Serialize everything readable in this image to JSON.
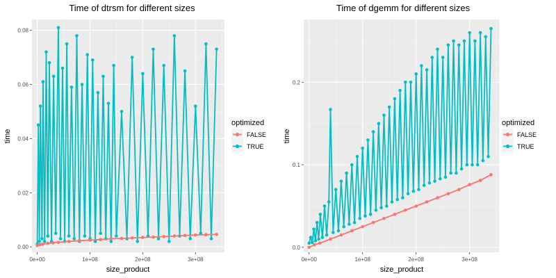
{
  "chart_data": [
    {
      "type": "line",
      "title": "Time of dtrsm for different sizes",
      "xlabel": "size_product",
      "ylabel": "time",
      "xlim": [
        -10000000,
        355000000
      ],
      "ylim": [
        -0.002,
        0.084
      ],
      "x_ticks": [
        {
          "value": 0,
          "label": "0e+00"
        },
        {
          "value": 100000000,
          "label": "1e+08"
        },
        {
          "value": 200000000,
          "label": "2e+08"
        },
        {
          "value": 300000000,
          "label": "3e+08"
        }
      ],
      "y_ticks": [
        {
          "value": 0.0,
          "label": "0.00"
        },
        {
          "value": 0.02,
          "label": "0.02"
        },
        {
          "value": 0.04,
          "label": "0.04"
        },
        {
          "value": 0.06,
          "label": "0.06"
        },
        {
          "value": 0.08,
          "label": "0.08"
        }
      ],
      "legend": {
        "title": "optimized",
        "placement": "right",
        "entries": [
          "FALSE",
          "TRUE"
        ]
      },
      "series": [
        {
          "name": "FALSE",
          "color": "#F8766D",
          "x": [
            0,
            5000000,
            10000000,
            20000000,
            30000000,
            40000000,
            60000000,
            80000000,
            100000000,
            120000000,
            140000000,
            160000000,
            180000000,
            200000000,
            220000000,
            240000000,
            260000000,
            280000000,
            300000000,
            320000000,
            340000000
          ],
          "y": [
            0.0005,
            0.0008,
            0.001,
            0.0013,
            0.0015,
            0.0017,
            0.002,
            0.0023,
            0.0025,
            0.0027,
            0.003,
            0.0031,
            0.0033,
            0.0035,
            0.0036,
            0.0038,
            0.004,
            0.0042,
            0.0044,
            0.0045,
            0.0046
          ]
        },
        {
          "name": "TRUE",
          "color": "#00BFC4",
          "x": [
            0,
            2000000,
            4000000,
            6000000,
            9000000,
            11000000,
            14000000,
            17000000,
            20000000,
            23000000,
            27000000,
            31000000,
            35000000,
            40000000,
            44000000,
            48000000,
            52000000,
            56000000,
            60000000,
            65000000,
            70000000,
            75000000,
            80000000,
            85000000,
            90000000,
            95000000,
            100000000,
            105000000,
            110000000,
            115000000,
            120000000,
            125000000,
            130000000,
            135000000,
            140000000,
            145000000,
            150000000,
            160000000,
            170000000,
            180000000,
            190000000,
            200000000,
            210000000,
            220000000,
            230000000,
            240000000,
            250000000,
            260000000,
            270000000,
            280000000,
            290000000,
            300000000,
            310000000,
            320000000,
            330000000,
            340000000
          ],
          "y": [
            0.001,
            0.045,
            0.002,
            0.052,
            0.003,
            0.061,
            0.002,
            0.072,
            0.004,
            0.068,
            0.002,
            0.063,
            0.005,
            0.081,
            0.003,
            0.066,
            0.002,
            0.075,
            0.004,
            0.059,
            0.003,
            0.078,
            0.002,
            0.06,
            0.004,
            0.071,
            0.003,
            0.069,
            0.002,
            0.057,
            0.005,
            0.063,
            0.003,
            0.053,
            0.002,
            0.067,
            0.004,
            0.05,
            0.003,
            0.07,
            0.002,
            0.064,
            0.004,
            0.073,
            0.003,
            0.067,
            0.002,
            0.078,
            0.004,
            0.065,
            0.003,
            0.052,
            0.005,
            0.075,
            0.003,
            0.073
          ]
        }
      ]
    },
    {
      "type": "line",
      "title": "Time of dgemm for different sizes",
      "xlabel": "size_product",
      "ylabel": "time",
      "xlim": [
        -10000000,
        355000000
      ],
      "ylim": [
        -0.006,
        0.276
      ],
      "x_ticks": [
        {
          "value": 0,
          "label": "0e+00"
        },
        {
          "value": 100000000,
          "label": "1e+08"
        },
        {
          "value": 200000000,
          "label": "2e+08"
        },
        {
          "value": 300000000,
          "label": "3e+08"
        }
      ],
      "y_ticks": [
        {
          "value": 0.0,
          "label": "0.0"
        },
        {
          "value": 0.1,
          "label": "0.1"
        },
        {
          "value": 0.2,
          "label": "0.2"
        }
      ],
      "legend": {
        "title": "optimized",
        "placement": "right",
        "entries": [
          "FALSE",
          "TRUE"
        ]
      },
      "series": [
        {
          "name": "FALSE",
          "color": "#F8766D",
          "x": [
            0,
            10000000,
            20000000,
            40000000,
            60000000,
            80000000,
            100000000,
            120000000,
            140000000,
            160000000,
            180000000,
            200000000,
            220000000,
            240000000,
            260000000,
            280000000,
            300000000,
            320000000,
            340000000
          ],
          "y": [
            0.0,
            0.003,
            0.005,
            0.01,
            0.015,
            0.02,
            0.025,
            0.03,
            0.035,
            0.04,
            0.045,
            0.05,
            0.055,
            0.06,
            0.065,
            0.07,
            0.076,
            0.081,
            0.088
          ]
        },
        {
          "name": "TRUE",
          "color": "#00BFC4",
          "x": [
            0,
            3000000,
            6000000,
            9000000,
            12000000,
            15000000,
            18000000,
            21000000,
            25000000,
            29000000,
            33000000,
            37000000,
            40000000,
            45000000,
            50000000,
            55000000,
            60000000,
            65000000,
            70000000,
            75000000,
            80000000,
            85000000,
            90000000,
            95000000,
            100000000,
            105000000,
            110000000,
            115000000,
            120000000,
            125000000,
            130000000,
            135000000,
            140000000,
            145000000,
            150000000,
            155000000,
            160000000,
            165000000,
            170000000,
            175000000,
            180000000,
            185000000,
            190000000,
            195000000,
            200000000,
            205000000,
            210000000,
            215000000,
            220000000,
            225000000,
            230000000,
            235000000,
            240000000,
            245000000,
            250000000,
            255000000,
            260000000,
            265000000,
            270000000,
            275000000,
            280000000,
            285000000,
            290000000,
            295000000,
            300000000,
            305000000,
            310000000,
            315000000,
            320000000,
            325000000,
            330000000,
            335000000,
            340000000
          ],
          "y": [
            0.005,
            0.012,
            0.006,
            0.022,
            0.008,
            0.03,
            0.01,
            0.04,
            0.012,
            0.05,
            0.015,
            0.055,
            0.167,
            0.018,
            0.07,
            0.02,
            0.08,
            0.025,
            0.09,
            0.028,
            0.1,
            0.03,
            0.11,
            0.035,
            0.12,
            0.038,
            0.13,
            0.04,
            0.14,
            0.045,
            0.15,
            0.048,
            0.16,
            0.05,
            0.17,
            0.055,
            0.18,
            0.058,
            0.19,
            0.06,
            0.2,
            0.065,
            0.2,
            0.068,
            0.21,
            0.07,
            0.22,
            0.075,
            0.215,
            0.078,
            0.23,
            0.08,
            0.24,
            0.083,
            0.23,
            0.085,
            0.245,
            0.09,
            0.25,
            0.09,
            0.245,
            0.095,
            0.25,
            0.1,
            0.26,
            0.1,
            0.25,
            0.1,
            0.26,
            0.105,
            0.255,
            0.11,
            0.265
          ]
        }
      ]
    }
  ]
}
